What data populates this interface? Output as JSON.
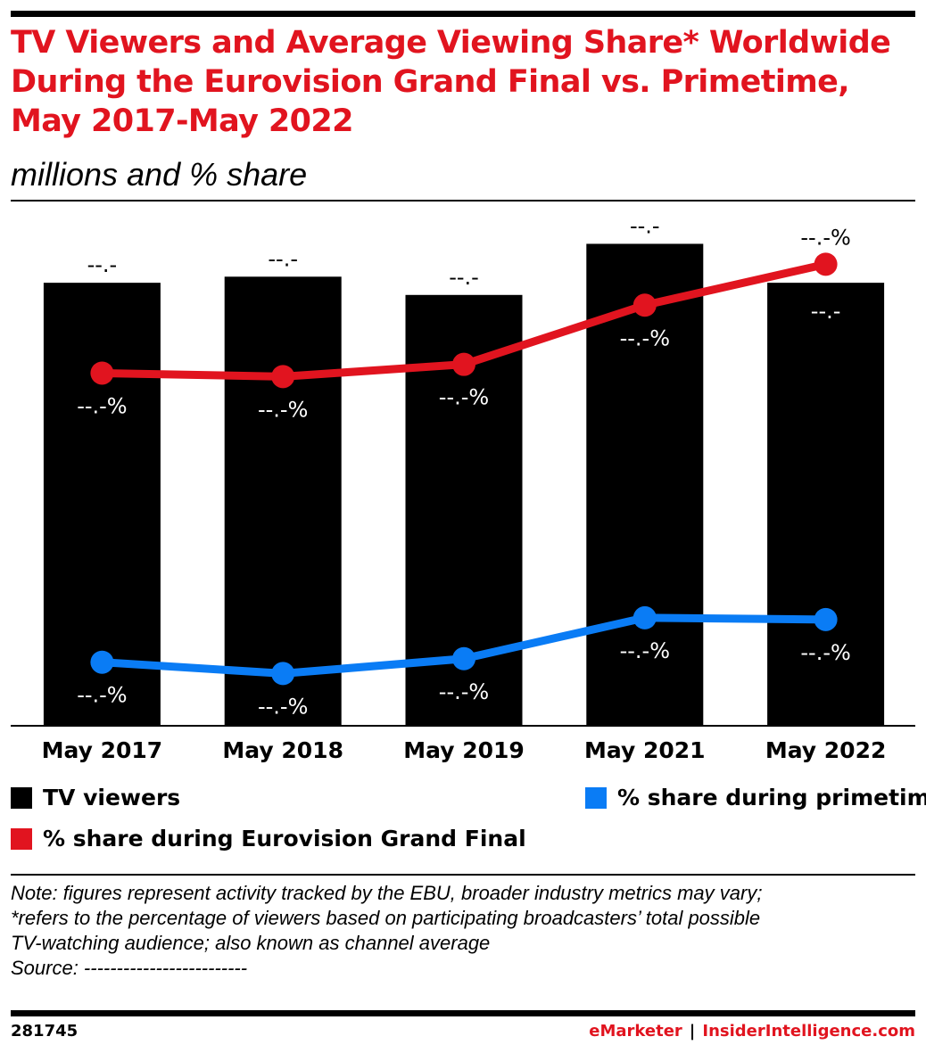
{
  "header": {
    "title": "TV Viewers and Average Viewing Share* Worldwide During the Eurovision Grand Final vs. Primetime, May 2017-May 2022",
    "subtitle": "millions and % share"
  },
  "colors": {
    "title_red": "#e1141f",
    "tv_viewers": "#000000",
    "grand_final": "#e1141f",
    "primetime": "#0a7cf5"
  },
  "chart_data": {
    "type": "bar",
    "categories": [
      "May 2017",
      "May 2018",
      "May 2019",
      "May 2021",
      "May 2022"
    ],
    "ylim": [
      0,
      200
    ],
    "grid": false,
    "legend_position": "bottom",
    "series": [
      {
        "name": "TV viewers",
        "type": "bar",
        "axis": "left",
        "values": [
          182,
          184.5,
          177,
          198,
          182
        ],
        "labels": [
          "--.-",
          "--.-",
          "--.-",
          "--.-",
          "--.-"
        ]
      },
      {
        "name": "% share during Eurovision Grand Final",
        "type": "line",
        "axis": "right",
        "values": [
          40.5,
          40.1,
          41.5,
          48.3,
          53.0
        ],
        "labels": [
          "--.-%",
          "--.-%",
          "--.-%",
          "--.-%",
          "--.-%"
        ]
      },
      {
        "name": "% share during primetime",
        "type": "line",
        "axis": "right",
        "values": [
          7.3,
          6.0,
          7.7,
          12.4,
          12.2
        ],
        "labels": [
          "--.-%",
          "--.-%",
          "--.-%",
          "--.-%",
          "--.-%"
        ]
      }
    ],
    "y2lim": [
      0,
      60
    ]
  },
  "legend": {
    "tv_viewers": "TV viewers",
    "grand_final": "% share during Eurovision Grand Final",
    "primetime": "% share during primetime"
  },
  "notes": {
    "line1": "Note: figures represent activity tracked by the EBU, broader industry metrics may vary;",
    "line2": "*refers to the percentage of viewers based on participating broadcasters’ total possible",
    "line3": "TV-watching audience; also known as channel average",
    "source": "Source: -------------------------"
  },
  "footer": {
    "chart_id": "281745",
    "brand_left": "eMarketer",
    "separator": "|",
    "brand_right": "InsiderIntelligence.com"
  }
}
